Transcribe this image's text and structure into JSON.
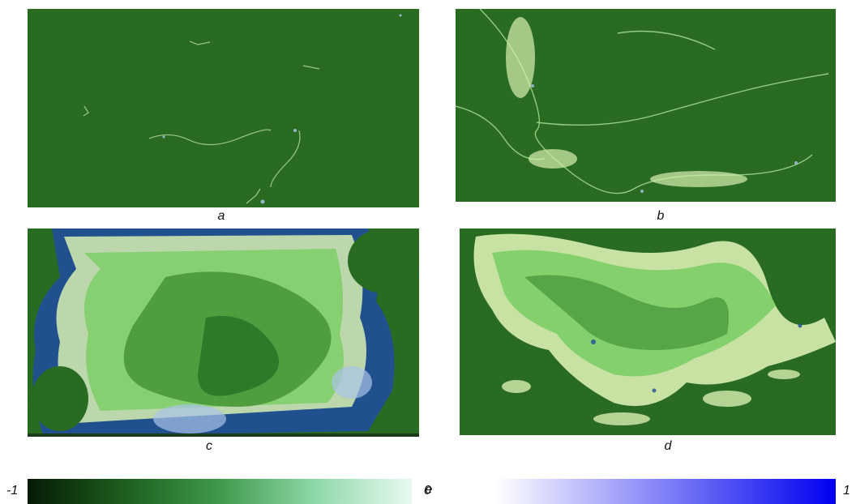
{
  "panels": [
    {
      "id": "a",
      "caption": "a"
    },
    {
      "id": "b",
      "caption": "b"
    },
    {
      "id": "c",
      "caption": "c"
    },
    {
      "id": "d",
      "caption": "d"
    }
  ],
  "colorbar": {
    "caption": "e",
    "min_label": "-1",
    "mid_label": "0",
    "max_label": "1",
    "negative_colors": [
      "#061a06",
      "#1d5e1d",
      "#3f9a4b",
      "#8fd8a9",
      "#e8faf0"
    ],
    "positive_colors": [
      "#ffffff",
      "#7f7ff7",
      "#0000f0"
    ]
  },
  "colors": {
    "background": "#2a6b22",
    "light_green": "#7fcf6a",
    "pale": "#d8efb0",
    "blue": "#1f4f9a",
    "light_blue": "#a9c3e8"
  }
}
